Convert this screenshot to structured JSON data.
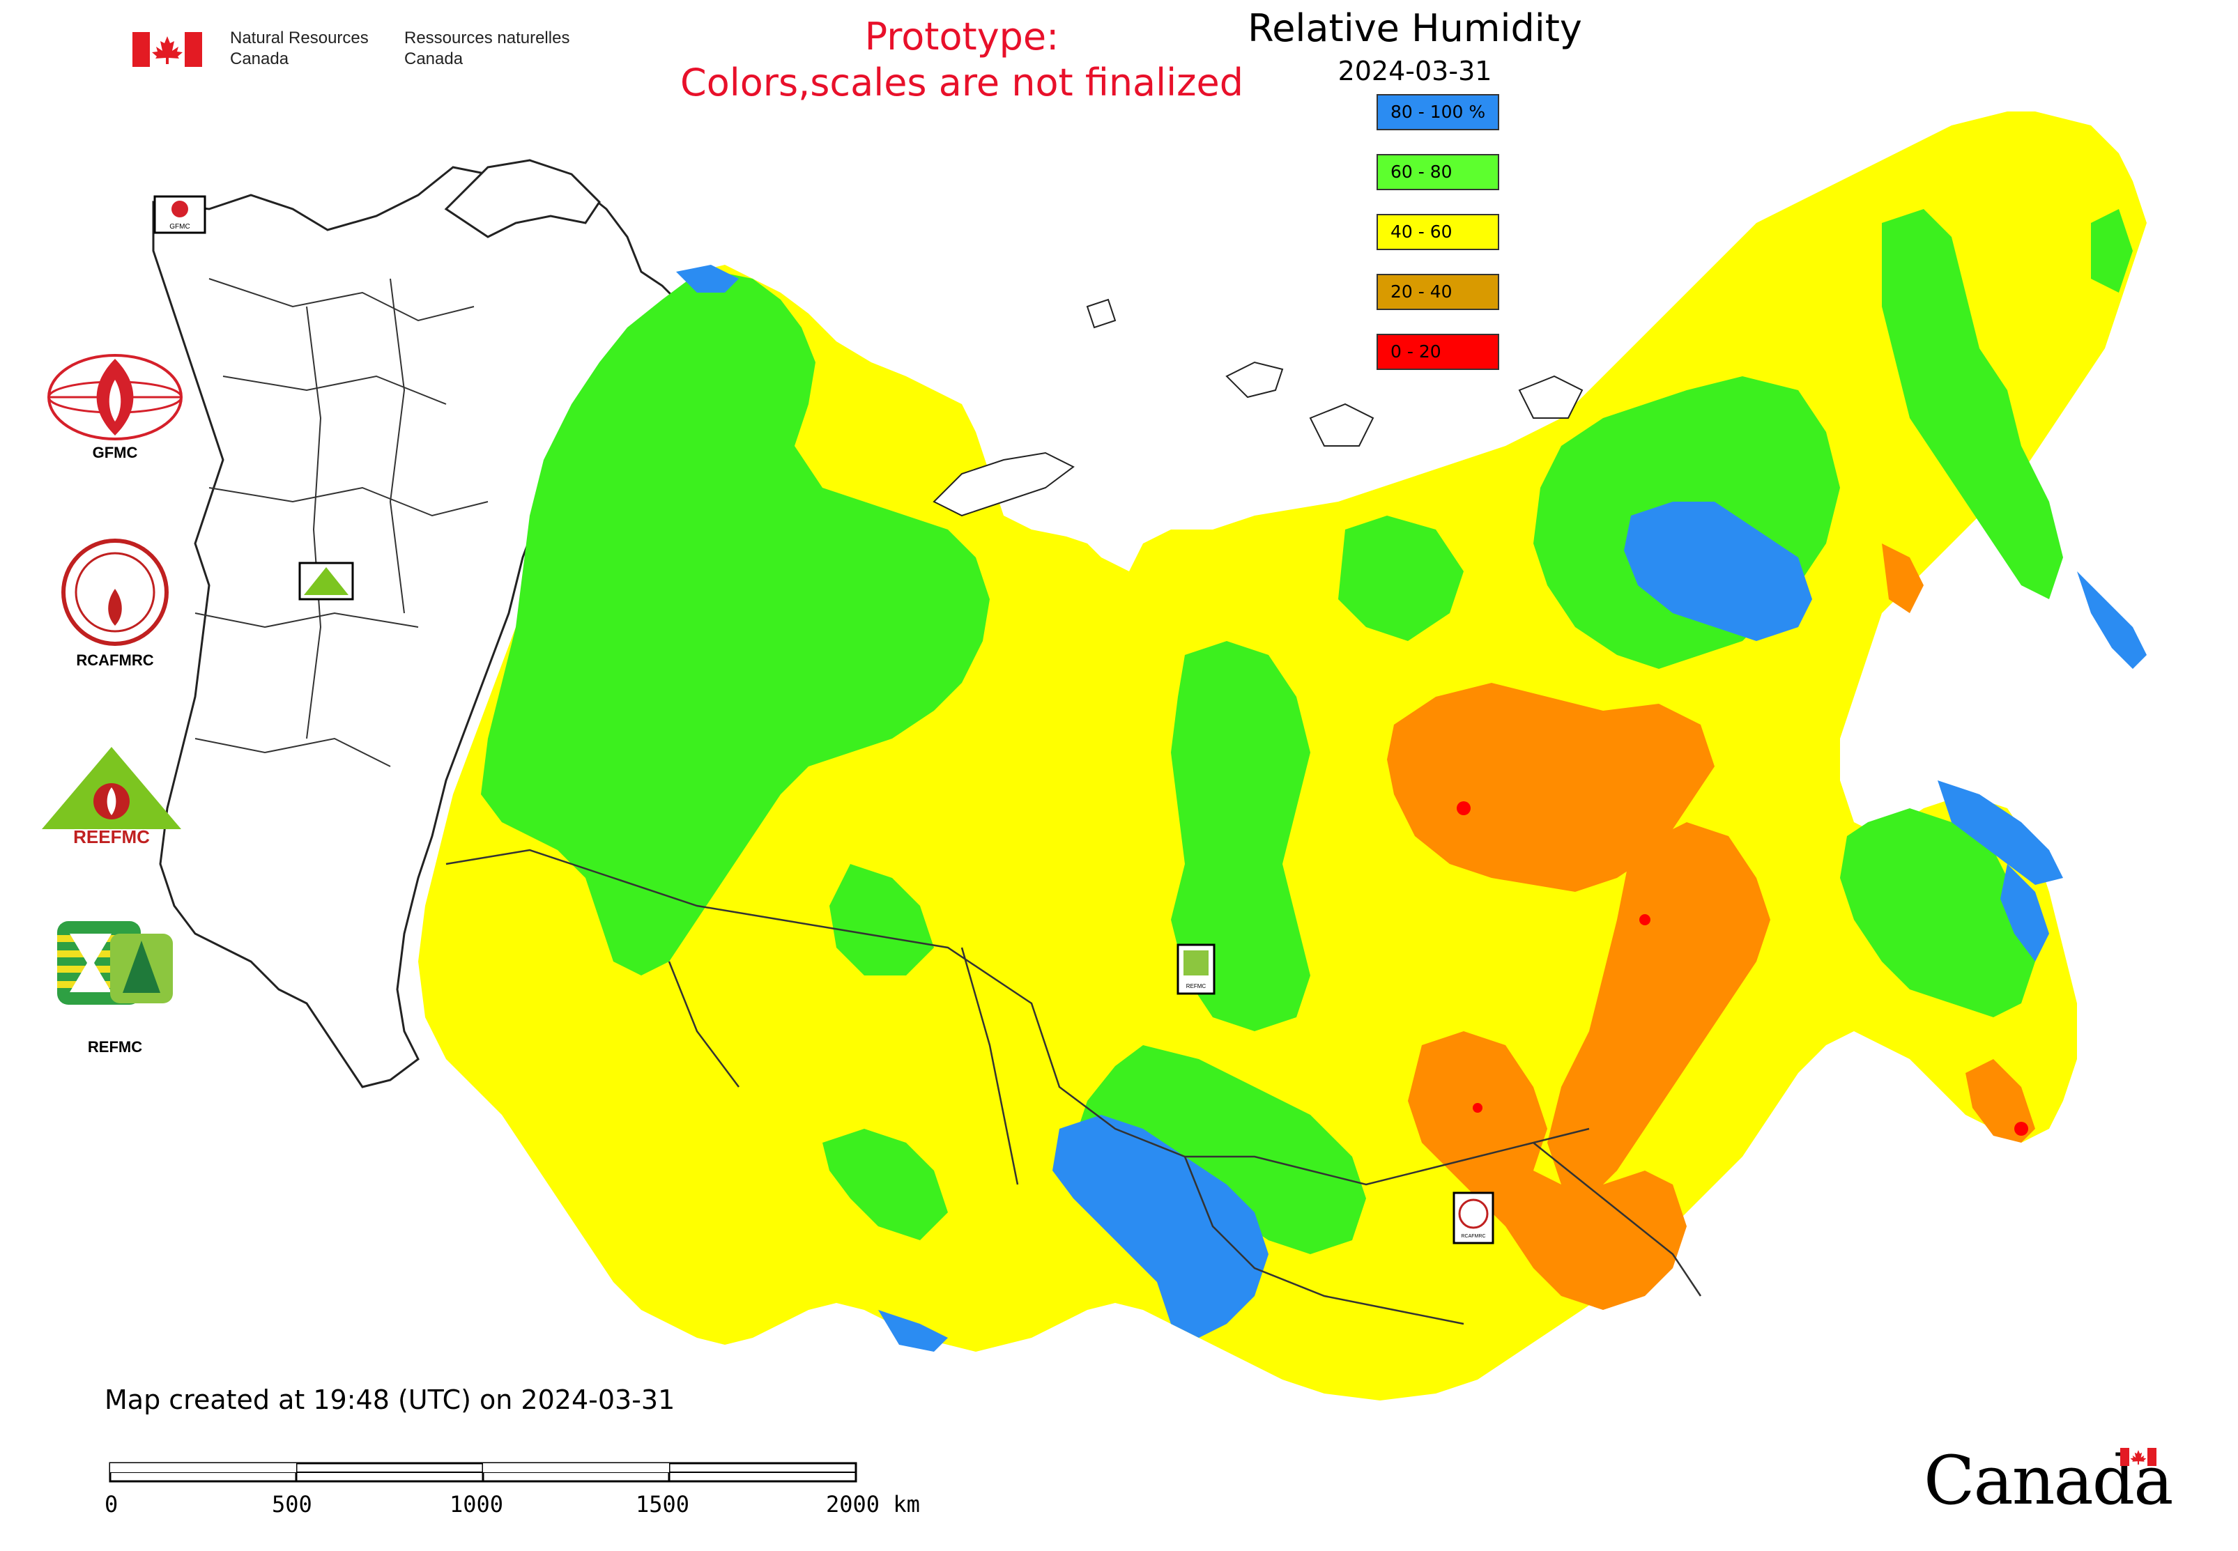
{
  "header": {
    "agency_en_1": "Natural Resources",
    "agency_en_2": "Canada",
    "agency_fr_1": "Ressources naturelles",
    "agency_fr_2": "Canada",
    "prototype_line1": "Prototype:",
    "prototype_line2": "Colors,scales are not finalized",
    "map_title": "Relative Humidity",
    "map_date": "2024-03-31"
  },
  "legend": [
    {
      "label": "80 - 100 %",
      "color": "#2b8cf2"
    },
    {
      "label": "60 - 80",
      "color": "#5dff2e"
    },
    {
      "label": "40 - 60",
      "color": "#ffff00"
    },
    {
      "label": "20 - 40",
      "color": "#d99a00"
    },
    {
      "label": "0 - 20",
      "color": "#ff0000"
    }
  ],
  "colors": {
    "blue": "#2b8cf2",
    "green": "#3cf01e",
    "yellow": "#ffff00",
    "orange": "#ff8c00",
    "red": "#ff0000",
    "prototype_text": "#e8102a"
  },
  "logos": [
    {
      "label": "GFMC",
      "icon": "gfmc-globe-flame-icon"
    },
    {
      "label": "RCAFMRC",
      "icon": "rcafmrc-seal-icon"
    },
    {
      "label": "REEFMC",
      "icon": "reefmc-triangle-icon"
    },
    {
      "label": "REFMC",
      "icon": "refmc-sigma-icon"
    }
  ],
  "footer": {
    "created": "Map created at 19:48 (UTC) on 2024-03-31",
    "scale_labels": [
      "0",
      "500",
      "1000",
      "1500",
      "2000 km"
    ],
    "wordmark": "Canada"
  }
}
